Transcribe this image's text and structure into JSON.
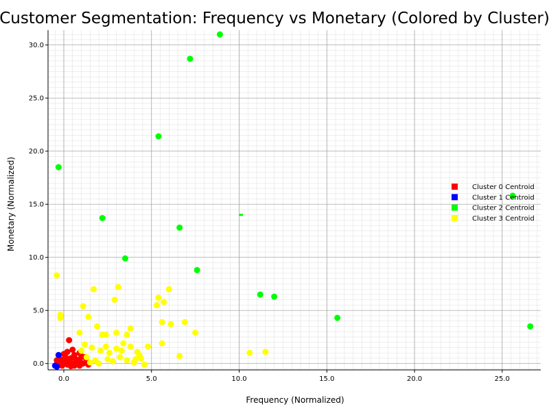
{
  "chart_data": {
    "type": "scatter",
    "title": "Customer Segmentation: Frequency vs Monetary (Colored by Cluster)",
    "xlabel": "Frequency (Normalized)",
    "ylabel": "Monetary (Normalized)",
    "xlim": [
      -0.9,
      27.2
    ],
    "ylim": [
      -0.6,
      31.4
    ],
    "xticks": [
      0.0,
      5.0,
      10.0,
      15.0,
      20.0,
      25.0
    ],
    "yticks": [
      0.0,
      5.0,
      10.0,
      15.0,
      20.0,
      25.0,
      30.0
    ],
    "grid": true,
    "legend_position": "right",
    "series": [
      {
        "name": "Cluster 0",
        "color": "#ff0000",
        "points": [
          [
            0.3,
            2.2
          ],
          [
            0.5,
            1.3
          ],
          [
            0.9,
            1.0
          ],
          [
            0.2,
            1.1
          ],
          [
            0.0,
            0.9
          ],
          [
            1.0,
            0.7
          ],
          [
            1.2,
            0.6
          ],
          [
            0.6,
            0.8
          ],
          [
            0.4,
            0.5
          ],
          [
            0.1,
            0.6
          ],
          [
            -0.2,
            0.4
          ],
          [
            -0.4,
            0.3
          ],
          [
            0.7,
            0.4
          ],
          [
            0.9,
            0.3
          ],
          [
            1.3,
            0.2
          ],
          [
            0.3,
            0.2
          ],
          [
            0.8,
            0.1
          ],
          [
            0.0,
            0.2
          ],
          [
            -0.3,
            0.0
          ],
          [
            0.5,
            0.0
          ],
          [
            1.1,
            0.0
          ],
          [
            0.2,
            -0.1
          ],
          [
            0.6,
            -0.2
          ],
          [
            -0.1,
            -0.2
          ],
          [
            1.4,
            -0.1
          ],
          [
            0.4,
            -0.25
          ],
          [
            0.9,
            -0.2
          ],
          [
            -0.4,
            -0.1
          ]
        ]
      },
      {
        "name": "Cluster 1",
        "color": "#0000ff",
        "points": [
          [
            -0.3,
            0.8
          ],
          [
            -0.5,
            -0.2
          ],
          [
            -0.4,
            -0.3
          ]
        ]
      },
      {
        "name": "Cluster 2",
        "color": "#00ff00",
        "points": [
          [
            8.9,
            31.0
          ],
          [
            7.2,
            28.7
          ],
          [
            5.4,
            21.4
          ],
          [
            -0.3,
            18.5
          ],
          [
            2.2,
            13.7
          ],
          [
            6.6,
            12.8
          ],
          [
            3.5,
            9.9
          ],
          [
            7.6,
            8.8
          ],
          [
            11.2,
            6.5
          ],
          [
            12.0,
            6.3
          ],
          [
            15.6,
            4.3
          ],
          [
            26.6,
            3.5
          ],
          [
            25.6,
            15.8
          ]
        ]
      },
      {
        "name": "Cluster 3",
        "color": "#ffff00",
        "points": [
          [
            -0.4,
            8.3
          ],
          [
            -0.2,
            4.6
          ],
          [
            -0.2,
            4.3
          ],
          [
            1.1,
            5.4
          ],
          [
            1.7,
            7.0
          ],
          [
            3.1,
            7.2
          ],
          [
            2.9,
            6.0
          ],
          [
            6.0,
            7.0
          ],
          [
            5.4,
            6.2
          ],
          [
            5.7,
            5.8
          ],
          [
            5.3,
            5.5
          ],
          [
            1.4,
            4.4
          ],
          [
            1.9,
            3.5
          ],
          [
            2.4,
            2.7
          ],
          [
            3.6,
            2.7
          ],
          [
            3.8,
            3.3
          ],
          [
            5.6,
            3.9
          ],
          [
            6.1,
            3.7
          ],
          [
            6.9,
            3.9
          ],
          [
            7.5,
            2.9
          ],
          [
            5.6,
            1.9
          ],
          [
            4.8,
            1.6
          ],
          [
            4.3,
            0.8
          ],
          [
            6.6,
            0.7
          ],
          [
            10.6,
            1.0
          ],
          [
            11.5,
            1.1
          ],
          [
            0.9,
            2.9
          ],
          [
            1.2,
            1.8
          ],
          [
            1.6,
            1.5
          ],
          [
            2.1,
            1.2
          ],
          [
            2.6,
            1.0
          ],
          [
            3.0,
            1.4
          ],
          [
            3.4,
            1.9
          ],
          [
            3.8,
            1.6
          ],
          [
            4.2,
            1.1
          ],
          [
            4.4,
            0.5
          ],
          [
            3.2,
            0.6
          ],
          [
            2.5,
            0.4
          ],
          [
            1.8,
            0.3
          ],
          [
            1.3,
            0.6
          ],
          [
            1.5,
            0.1
          ],
          [
            2.0,
            0.0
          ],
          [
            2.8,
            0.2
          ],
          [
            3.6,
            0.3
          ],
          [
            4.0,
            0.1
          ],
          [
            4.6,
            -0.1
          ],
          [
            3.0,
            2.9
          ],
          [
            2.2,
            2.7
          ],
          [
            1.0,
            1.2
          ],
          [
            2.4,
            1.6
          ],
          [
            3.3,
            1.2
          ],
          [
            4.1,
            0.4
          ]
        ]
      }
    ],
    "centroids": [
      {
        "label": "Cluster 0 Centroid",
        "color": "#ff0000"
      },
      {
        "label": "Cluster 1 Centroid",
        "color": "#0000ff"
      },
      {
        "label": "Cluster 2 Centroid",
        "color": "#00ff00",
        "x": 10.1,
        "y": 14.0
      },
      {
        "label": "Cluster 3 Centroid",
        "color": "#ffff00"
      }
    ]
  }
}
